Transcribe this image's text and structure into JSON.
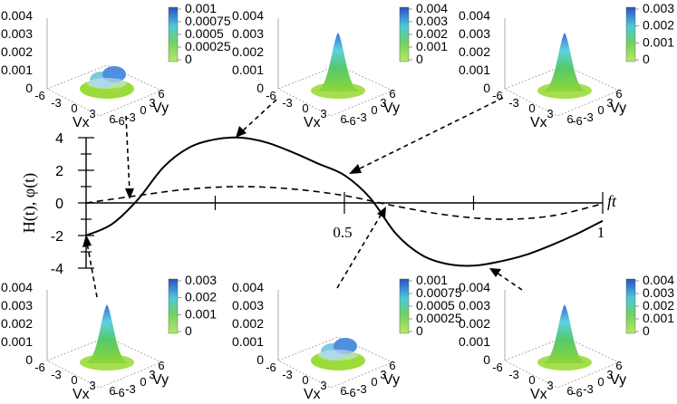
{
  "chart_data": {
    "type": "line",
    "xlabel": "ft",
    "ylabel": "H(t), φ(t)",
    "xlim": [
      0,
      1
    ],
    "ylim": [
      -4,
      4
    ],
    "x_ticks": [
      "0.5",
      "1"
    ],
    "y_ticks": [
      "4",
      "2",
      "0",
      "-2",
      "-4"
    ],
    "series": [
      {
        "style": "solid",
        "x": [
          0,
          0.05,
          0.1,
          0.15,
          0.2,
          0.25,
          0.3,
          0.35,
          0.4,
          0.45,
          0.5,
          0.55,
          0.6,
          0.65,
          0.7,
          0.75,
          0.8,
          0.85,
          0.9,
          0.95,
          1.0
        ],
        "y": [
          -2.0,
          -1.3,
          0.2,
          2.2,
          3.4,
          3.9,
          4.0,
          3.7,
          3.1,
          2.4,
          1.7,
          0.3,
          -1.9,
          -3.2,
          -3.75,
          -3.85,
          -3.6,
          -3.2,
          -2.6,
          -1.9,
          -1.1
        ]
      },
      {
        "style": "dashed",
        "x": [
          0,
          0.1,
          0.2,
          0.3,
          0.4,
          0.5,
          0.6,
          0.7,
          0.8,
          0.9,
          1.0
        ],
        "y": [
          0.0,
          0.45,
          0.85,
          1.0,
          0.85,
          0.45,
          -0.2,
          -0.75,
          -1.0,
          -0.8,
          -0.05
        ]
      }
    ]
  },
  "insets": [
    {
      "id": "top-1",
      "zticks": [
        "0.004",
        "0.003",
        "0.002",
        "0.001",
        "0"
      ],
      "cbar": [
        "0.001",
        "0.00075",
        "0.0005",
        "0.00025",
        "0"
      ],
      "shape": "double",
      "xaxis_label": "Vx",
      "yaxis_label": "Vy",
      "vx_ticks": [
        "-6",
        "-3",
        "0",
        "3",
        "6"
      ],
      "vy_ticks": [
        "6",
        "3",
        "0",
        "-3",
        "-6"
      ]
    },
    {
      "id": "top-2",
      "zticks": [
        "0.004",
        "0.003",
        "0.002",
        "0.001",
        "0"
      ],
      "cbar": [
        "0.004",
        "0.003",
        "0.002",
        "0.001",
        "0"
      ],
      "shape": "peak",
      "xaxis_label": "Vx",
      "yaxis_label": "Vy",
      "vx_ticks": [
        "-6",
        "-3",
        "0",
        "3",
        "6"
      ],
      "vy_ticks": [
        "6",
        "3",
        "0",
        "-3",
        "-6"
      ]
    },
    {
      "id": "top-3",
      "zticks": [
        "0.004",
        "0.003",
        "0.002",
        "0.001",
        "0"
      ],
      "cbar": [
        "0.003",
        "0.002",
        "0.001",
        "0"
      ],
      "shape": "peak",
      "xaxis_label": "Vx",
      "yaxis_label": "Vy",
      "vx_ticks": [
        "-6",
        "-3",
        "0",
        "3",
        "6"
      ],
      "vy_ticks": [
        "6",
        "3",
        "0",
        "-3",
        "-6"
      ]
    },
    {
      "id": "bot-1",
      "zticks": [
        "0.004",
        "0.003",
        "0.002",
        "0.001",
        "0"
      ],
      "cbar": [
        "0.003",
        "0.002",
        "0.001",
        "0"
      ],
      "shape": "peak",
      "xaxis_label": "Vx",
      "yaxis_label": "Vy",
      "vx_ticks": [
        "-6",
        "-3",
        "0",
        "3",
        "6"
      ],
      "vy_ticks": [
        "6",
        "3",
        "0",
        "-3",
        "-6"
      ]
    },
    {
      "id": "bot-2",
      "zticks": [
        "0.004",
        "0.003",
        "0.002",
        "0.001",
        "0"
      ],
      "cbar": [
        "0.001",
        "0.00075",
        "0.0005",
        "0.00025",
        "0"
      ],
      "shape": "double",
      "xaxis_label": "Vx",
      "yaxis_label": "Vy",
      "vx_ticks": [
        "-6",
        "-3",
        "0",
        "3",
        "6"
      ],
      "vy_ticks": [
        "6",
        "3",
        "0",
        "-3",
        "-6"
      ]
    },
    {
      "id": "bot-3",
      "zticks": [
        "0.004",
        "0.003",
        "0.002",
        "0.001",
        "0"
      ],
      "cbar": [
        "0.004",
        "0.003",
        "0.002",
        "0.001",
        "0"
      ],
      "shape": "peak",
      "xaxis_label": "Vx",
      "yaxis_label": "Vy",
      "vx_ticks": [
        "-6",
        "-3",
        "0",
        "3",
        "6"
      ],
      "vy_ticks": [
        "6",
        "3",
        "0",
        "-3",
        "-6"
      ]
    }
  ]
}
